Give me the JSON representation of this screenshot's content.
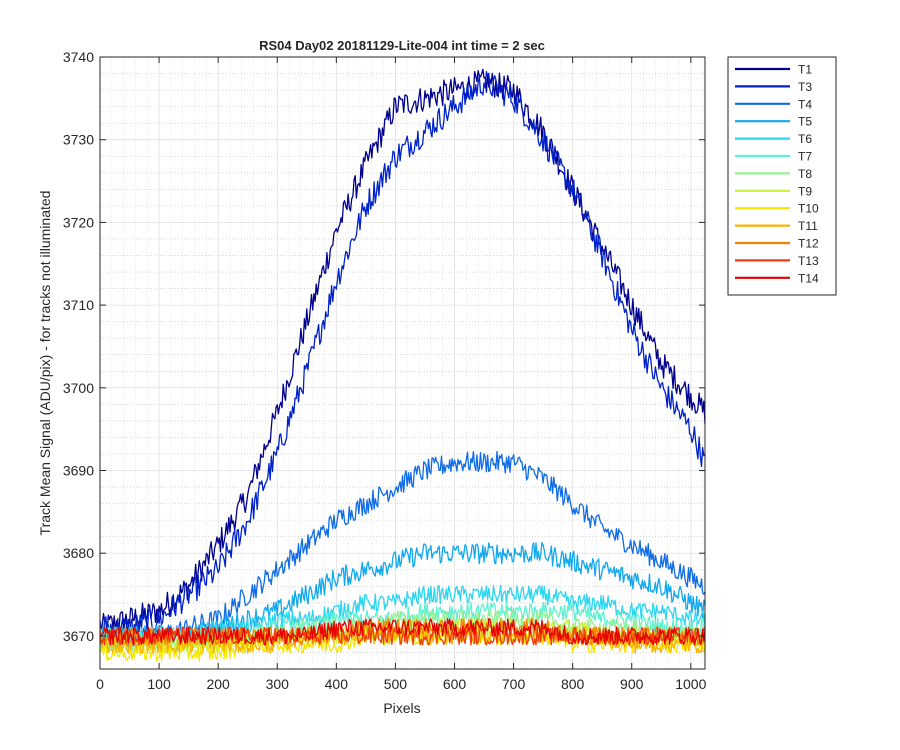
{
  "chart_data": {
    "type": "line",
    "title": "RS04 Day02 20181129-Lite-004 int time = 2 sec",
    "xlabel": "Pixels",
    "ylabel": "Track Mean Signal (ADU/pix) - for tracks not illuminated",
    "xlim": [
      0,
      1024
    ],
    "ylim": [
      3666,
      3740
    ],
    "xticks": [
      0,
      100,
      200,
      300,
      400,
      500,
      600,
      700,
      800,
      900,
      1000
    ],
    "yticks": [
      3670,
      3680,
      3690,
      3700,
      3710,
      3720,
      3730,
      3740
    ],
    "grid": "major and minor",
    "legend_position": "outside-top-right",
    "x_key": [
      0,
      50,
      100,
      150,
      200,
      250,
      300,
      350,
      400,
      450,
      500,
      550,
      600,
      650,
      700,
      750,
      800,
      850,
      900,
      950,
      1000,
      1024
    ],
    "series": [
      {
        "name": "T1",
        "color": "#00008f",
        "values": [
          3671,
          3672,
          3673,
          3676,
          3681,
          3687,
          3697,
          3708,
          3719,
          3727,
          3734,
          3735,
          3736,
          3737,
          3736,
          3731,
          3724,
          3717,
          3710,
          3703,
          3699,
          3697
        ]
      },
      {
        "name": "T3",
        "color": "#0022c8",
        "values": [
          3671,
          3671,
          3672,
          3675,
          3678,
          3684,
          3692,
          3702,
          3713,
          3722,
          3728,
          3731,
          3734,
          3737,
          3735,
          3730,
          3724,
          3716,
          3707,
          3700,
          3695,
          3691
        ]
      },
      {
        "name": "T4",
        "color": "#0f6ce8",
        "values": [
          3670,
          3670,
          3670,
          3671,
          3672,
          3675,
          3678,
          3681,
          3684,
          3686,
          3688,
          3690,
          3691,
          3691,
          3691,
          3689,
          3686,
          3683,
          3681,
          3679,
          3677,
          3676
        ]
      },
      {
        "name": "T5",
        "color": "#10a8ee",
        "values": [
          3670,
          3670,
          3670,
          3670,
          3671,
          3672,
          3673,
          3675,
          3677,
          3678,
          3679,
          3680,
          3680,
          3680,
          3680,
          3680,
          3679,
          3678,
          3677,
          3676,
          3674,
          3673
        ]
      },
      {
        "name": "T6",
        "color": "#2dd6f0",
        "values": [
          3670,
          3670,
          3670,
          3670,
          3671,
          3671,
          3672,
          3672,
          3673,
          3674,
          3674,
          3675,
          3675,
          3675,
          3675,
          3675,
          3674,
          3674,
          3673,
          3673,
          3672,
          3672
        ]
      },
      {
        "name": "T7",
        "color": "#5ef0d0",
        "values": [
          3670,
          3670,
          3670,
          3670,
          3670,
          3670,
          3671,
          3671,
          3672,
          3672,
          3672,
          3673,
          3673,
          3673,
          3673,
          3673,
          3673,
          3672,
          3672,
          3671,
          3671,
          3671
        ]
      },
      {
        "name": "T8",
        "color": "#96f096",
        "values": [
          3669,
          3669,
          3669,
          3669,
          3670,
          3670,
          3670,
          3671,
          3671,
          3671,
          3672,
          3672,
          3672,
          3672,
          3672,
          3672,
          3671,
          3671,
          3671,
          3670,
          3670,
          3670
        ]
      },
      {
        "name": "T9",
        "color": "#c8f03c",
        "values": [
          3669,
          3669,
          3669,
          3669,
          3669,
          3670,
          3670,
          3670,
          3670,
          3671,
          3671,
          3671,
          3671,
          3671,
          3671,
          3671,
          3671,
          3670,
          3670,
          3670,
          3670,
          3670
        ]
      },
      {
        "name": "T10",
        "color": "#f5e600",
        "values": [
          3668,
          3668,
          3668,
          3668,
          3668,
          3669,
          3669,
          3669,
          3669,
          3670,
          3670,
          3670,
          3670,
          3670,
          3670,
          3670,
          3669,
          3669,
          3669,
          3669,
          3669,
          3669
        ]
      },
      {
        "name": "T11",
        "color": "#f5b400",
        "values": [
          3669,
          3669,
          3669,
          3669,
          3669,
          3669,
          3669,
          3670,
          3670,
          3670,
          3670,
          3670,
          3670,
          3670,
          3670,
          3670,
          3670,
          3670,
          3669,
          3669,
          3669,
          3669
        ]
      },
      {
        "name": "T12",
        "color": "#f58200",
        "values": [
          3670,
          3670,
          3670,
          3670,
          3670,
          3670,
          3670,
          3670,
          3670,
          3671,
          3671,
          3671,
          3671,
          3671,
          3671,
          3671,
          3670,
          3670,
          3670,
          3670,
          3670,
          3670
        ]
      },
      {
        "name": "T13",
        "color": "#f03c0a",
        "values": [
          3670,
          3670,
          3670,
          3670,
          3670,
          3670,
          3670,
          3670,
          3670,
          3670,
          3670,
          3670,
          3670,
          3670,
          3670,
          3670,
          3670,
          3670,
          3670,
          3670,
          3670,
          3670
        ]
      },
      {
        "name": "T14",
        "color": "#e60000",
        "values": [
          3670,
          3670,
          3670,
          3670,
          3670,
          3670,
          3670,
          3670,
          3671,
          3671,
          3671,
          3671,
          3671,
          3671,
          3671,
          3671,
          3670,
          3670,
          3670,
          3670,
          3670,
          3670
        ]
      }
    ]
  }
}
